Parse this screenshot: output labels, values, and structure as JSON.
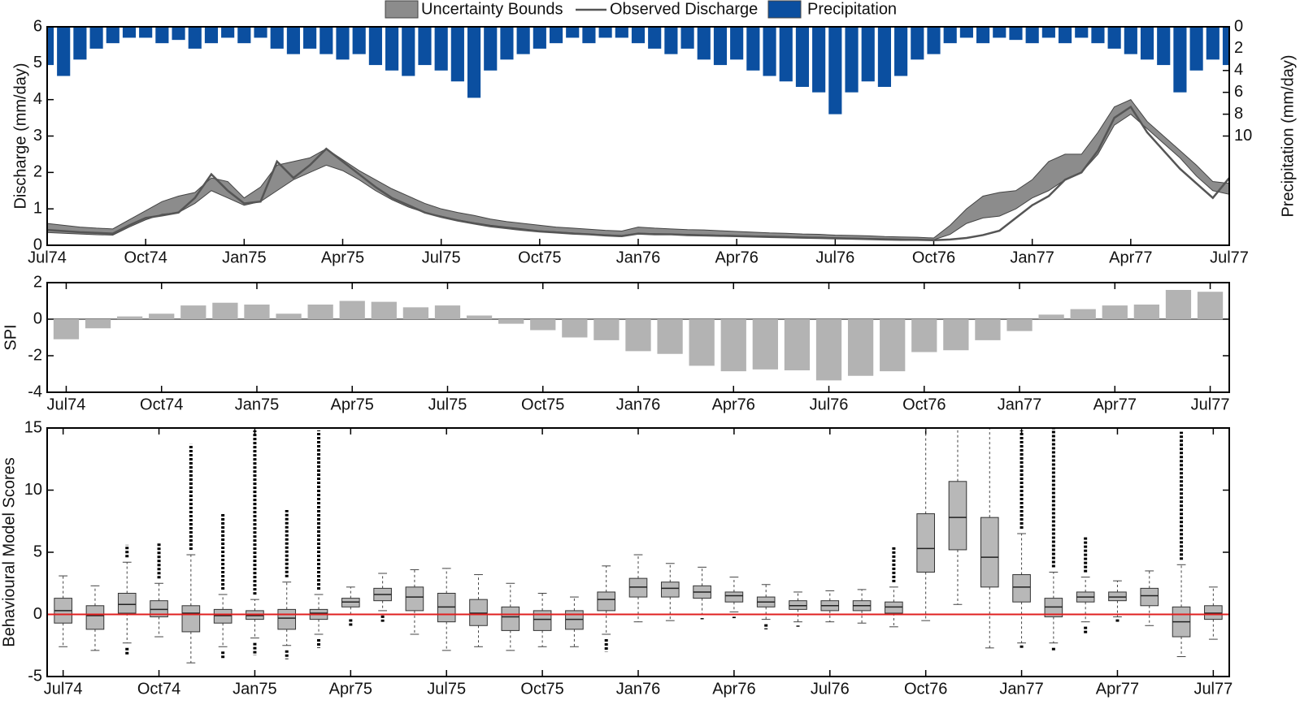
{
  "chart_data": [
    {
      "type": "line",
      "ylabel": "Discharge (mm/day)",
      "y2label": "Precipitation (mm/day)",
      "x": [
        0,
        0.5,
        1,
        1.5,
        2,
        2.5,
        3,
        3.5,
        4,
        4.5,
        5,
        5.5,
        6,
        6.5,
        7,
        7.5,
        8,
        8.5,
        9,
        9.5,
        10,
        10.5,
        11,
        11.5,
        12,
        12.5,
        13,
        13.5,
        14,
        14.5,
        15,
        15.5,
        16,
        16.5,
        17,
        17.5,
        18,
        18.5,
        19,
        19.5,
        20,
        20.5,
        21,
        21.5,
        22,
        22.5,
        23,
        23.5,
        24,
        24.5,
        25,
        25.5,
        26,
        26.5,
        27,
        27.5,
        28,
        28.5,
        29,
        29.5,
        30,
        30.5,
        31,
        31.5,
        32,
        32.5,
        33,
        33.5,
        34,
        34.5,
        35,
        35.5,
        36
      ],
      "xlim": [
        0,
        36
      ],
      "xticks": [
        {
          "value": 0,
          "label": "Jul74"
        },
        {
          "value": 3,
          "label": "Oct74"
        },
        {
          "value": 6,
          "label": "Jan75"
        },
        {
          "value": 9,
          "label": "Apr75"
        },
        {
          "value": 12,
          "label": "Jul75"
        },
        {
          "value": 15,
          "label": "Oct75"
        },
        {
          "value": 18,
          "label": "Jan76"
        },
        {
          "value": 21,
          "label": "Apr76"
        },
        {
          "value": 24,
          "label": "Jul76"
        },
        {
          "value": 27,
          "label": "Oct76"
        },
        {
          "value": 30,
          "label": "Jan77"
        },
        {
          "value": 33,
          "label": "Apr77"
        },
        {
          "value": 36,
          "label": "Jul77"
        }
      ],
      "ylim": [
        0,
        6
      ],
      "yticks": [
        0,
        1,
        2,
        3,
        4,
        5,
        6
      ],
      "y2lim": [
        20,
        0
      ],
      "y2ticks": [
        0,
        2,
        4,
        6,
        8,
        10
      ],
      "series": [
        {
          "name": "Uncertainty Bounds",
          "type": "band",
          "color": "#8c8c8c",
          "lower": [
            0.35,
            0.33,
            0.31,
            0.29,
            0.28,
            0.5,
            0.7,
            0.85,
            0.9,
            1.15,
            1.5,
            1.3,
            1.1,
            1.2,
            1.5,
            1.8,
            2.0,
            2.2,
            2.05,
            1.8,
            1.5,
            1.25,
            1.05,
            0.9,
            0.8,
            0.7,
            0.62,
            0.55,
            0.5,
            0.45,
            0.4,
            0.37,
            0.34,
            0.31,
            0.29,
            0.27,
            0.33,
            0.32,
            0.31,
            0.3,
            0.29,
            0.28,
            0.27,
            0.26,
            0.25,
            0.24,
            0.23,
            0.22,
            0.21,
            0.2,
            0.19,
            0.18,
            0.17,
            0.16,
            0.15,
            0.3,
            0.6,
            0.75,
            0.8,
            1.0,
            1.3,
            1.5,
            1.8,
            2.0,
            2.5,
            3.3,
            3.6,
            3.2,
            2.8,
            2.4,
            1.9,
            1.5,
            1.4
          ],
          "upper": [
            0.6,
            0.55,
            0.5,
            0.47,
            0.45,
            0.7,
            0.95,
            1.2,
            1.35,
            1.45,
            1.85,
            1.75,
            1.3,
            1.6,
            2.2,
            2.3,
            2.4,
            2.65,
            2.35,
            2.05,
            1.8,
            1.55,
            1.35,
            1.15,
            1.0,
            0.9,
            0.82,
            0.72,
            0.65,
            0.6,
            0.55,
            0.5,
            0.47,
            0.44,
            0.41,
            0.39,
            0.5,
            0.47,
            0.45,
            0.43,
            0.42,
            0.4,
            0.38,
            0.36,
            0.34,
            0.33,
            0.31,
            0.3,
            0.28,
            0.27,
            0.26,
            0.24,
            0.23,
            0.22,
            0.2,
            0.55,
            1.0,
            1.35,
            1.45,
            1.5,
            1.8,
            2.3,
            2.5,
            2.5,
            3.1,
            3.8,
            4.0,
            3.4,
            3.0,
            2.6,
            2.2,
            1.75,
            1.7
          ]
        },
        {
          "name": "Observed Discharge",
          "type": "line",
          "color": "#555555",
          "values": [
            0.42,
            0.39,
            0.36,
            0.34,
            0.32,
            0.55,
            0.75,
            0.82,
            0.9,
            1.3,
            1.95,
            1.5,
            1.15,
            1.2,
            2.3,
            1.85,
            2.2,
            2.65,
            2.3,
            1.95,
            1.6,
            1.3,
            1.1,
            0.9,
            0.78,
            0.68,
            0.6,
            0.52,
            0.47,
            0.42,
            0.38,
            0.35,
            0.32,
            0.3,
            0.27,
            0.25,
            0.32,
            0.3,
            0.3,
            0.28,
            0.27,
            0.26,
            0.25,
            0.24,
            0.23,
            0.22,
            0.21,
            0.2,
            0.19,
            0.18,
            0.17,
            0.16,
            0.15,
            0.15,
            0.14,
            0.16,
            0.2,
            0.28,
            0.4,
            0.75,
            1.1,
            1.35,
            1.8,
            2.0,
            2.6,
            3.5,
            3.8,
            3.1,
            2.6,
            2.1,
            1.7,
            1.3,
            1.85
          ]
        },
        {
          "name": "Precipitation",
          "type": "bar",
          "axis": "y2",
          "color": "#0b4fa0",
          "values": [
            3.5,
            4.5,
            3,
            2,
            1.5,
            1,
            1,
            1.5,
            1.2,
            2,
            1.5,
            1,
            1.5,
            1,
            2,
            2.5,
            2,
            2.5,
            3,
            2.5,
            3.5,
            4,
            4.5,
            3.5,
            4,
            5,
            6.5,
            4,
            3,
            2.5,
            2,
            1.5,
            1,
            1.5,
            1,
            1,
            1.5,
            2,
            2.5,
            2,
            3,
            3.5,
            3,
            4,
            4.5,
            5,
            5.5,
            6,
            8,
            6,
            5,
            5.5,
            4.5,
            3,
            2.5,
            1.5,
            1,
            1.5,
            1,
            1.2,
            1.5,
            1,
            1.5,
            1,
            1.5,
            2,
            2.5,
            3,
            3.5,
            6,
            4,
            3,
            3.5
          ]
        }
      ]
    },
    {
      "type": "bar",
      "ylabel": "SPI",
      "color": "#b3b3b3",
      "x": [
        0,
        1,
        2,
        3,
        4,
        5,
        6,
        7,
        8,
        9,
        10,
        11,
        12,
        13,
        14,
        15,
        16,
        17,
        18,
        19,
        20,
        21,
        22,
        23,
        24,
        25,
        26,
        27,
        28,
        29,
        30,
        31,
        32,
        33,
        34,
        35,
        36
      ],
      "values": [
        -1.1,
        -0.5,
        0.15,
        0.3,
        0.75,
        0.9,
        0.8,
        0.3,
        0.8,
        1.0,
        0.95,
        0.65,
        0.75,
        0.2,
        -0.25,
        -0.6,
        -1.0,
        -1.15,
        -1.75,
        -1.9,
        -2.55,
        -2.85,
        -2.75,
        -2.8,
        -3.35,
        -3.1,
        -2.85,
        -1.8,
        -1.7,
        -1.15,
        -0.65,
        0.25,
        0.55,
        0.75,
        0.8,
        1.6,
        1.5
      ],
      "xlim": [
        -0.6,
        36.6
      ],
      "xticks": [
        {
          "value": 0,
          "label": "Jul74"
        },
        {
          "value": 3,
          "label": "Oct74"
        },
        {
          "value": 6,
          "label": "Jan75"
        },
        {
          "value": 9,
          "label": "Apr75"
        },
        {
          "value": 12,
          "label": "Jul75"
        },
        {
          "value": 15,
          "label": "Oct75"
        },
        {
          "value": 18,
          "label": "Jan76"
        },
        {
          "value": 21,
          "label": "Apr76"
        },
        {
          "value": 24,
          "label": "Jul76"
        },
        {
          "value": 27,
          "label": "Oct76"
        },
        {
          "value": 30,
          "label": "Jan77"
        },
        {
          "value": 33,
          "label": "Apr77"
        },
        {
          "value": 36,
          "label": "Jul77"
        }
      ],
      "ylim": [
        -4,
        2
      ],
      "yticks": [
        -4,
        -2,
        0,
        2
      ]
    },
    {
      "type": "box",
      "ylabel": "Behavioural Model Scores",
      "color": "#b8b8b8",
      "hline": 0,
      "hline_color": "#e02020",
      "x": [
        0,
        1,
        2,
        3,
        4,
        5,
        6,
        7,
        8,
        9,
        10,
        11,
        12,
        13,
        14,
        15,
        16,
        17,
        18,
        19,
        20,
        21,
        22,
        23,
        24,
        25,
        26,
        27,
        28,
        29,
        30,
        31,
        32,
        33,
        34,
        35,
        36
      ],
      "whisker_low": [
        -2.6,
        -2.9,
        -2.3,
        -1.8,
        -3.9,
        -2.6,
        -1.9,
        -2.5,
        -1.6,
        0.0,
        0.3,
        -1.6,
        -2.9,
        -2.6,
        -2.9,
        -2.6,
        -2.6,
        -1.6,
        -0.6,
        -0.5,
        0.0,
        0.2,
        -0.4,
        -0.6,
        -0.6,
        -0.7,
        -1.0,
        -0.5,
        0.8,
        -2.7,
        -2.3,
        -2.3,
        -0.6,
        -0.2,
        -0.9,
        -3.4,
        -2.0
      ],
      "q1": [
        -0.7,
        -1.2,
        0.1,
        -0.2,
        -1.4,
        -0.7,
        -0.4,
        -1.2,
        -0.4,
        0.6,
        1.1,
        0.3,
        -0.6,
        -0.9,
        -1.3,
        -1.3,
        -1.2,
        0.3,
        1.4,
        1.4,
        1.3,
        1.0,
        0.6,
        0.4,
        0.3,
        0.3,
        0.1,
        3.4,
        5.2,
        2.2,
        1.0,
        -0.2,
        1.0,
        1.1,
        0.7,
        -1.8,
        -0.4
      ],
      "median": [
        0.3,
        -0.1,
        0.8,
        0.4,
        0.1,
        -0.1,
        -0.1,
        -0.3,
        0.1,
        1.0,
        1.6,
        1.4,
        0.6,
        0.1,
        -0.2,
        -0.4,
        -0.4,
        1.2,
        2.2,
        2.1,
        1.8,
        1.5,
        1.0,
        0.7,
        0.7,
        0.7,
        0.6,
        5.3,
        7.8,
        4.6,
        2.2,
        0.6,
        1.4,
        1.4,
        1.5,
        -0.6,
        0.1
      ],
      "q3": [
        1.3,
        0.7,
        1.7,
        1.1,
        0.7,
        0.4,
        0.3,
        0.4,
        0.4,
        1.3,
        2.1,
        2.2,
        1.7,
        1.2,
        0.6,
        0.3,
        0.3,
        1.8,
        2.9,
        2.6,
        2.3,
        1.8,
        1.4,
        1.1,
        1.1,
        1.1,
        1.0,
        8.1,
        10.7,
        7.8,
        3.2,
        1.3,
        1.8,
        1.8,
        2.1,
        0.6,
        0.7
      ],
      "whisker_high": [
        3.1,
        2.3,
        4.2,
        2.5,
        4.8,
        1.6,
        1.2,
        2.6,
        1.6,
        2.2,
        3.3,
        3.6,
        3.7,
        3.2,
        2.5,
        1.7,
        1.4,
        3.9,
        4.8,
        4.1,
        3.8,
        3.0,
        2.4,
        1.8,
        1.9,
        2.0,
        2.2,
        15,
        15,
        15,
        6.5,
        3.4,
        3.0,
        2.7,
        3.5,
        4.0,
        2.2
      ],
      "outlier_low": [
        null,
        null,
        -3.3,
        null,
        null,
        -3.6,
        -3.3,
        -3.6,
        -2.7,
        -1.0,
        -0.6,
        null,
        null,
        null,
        null,
        null,
        null,
        -3.0,
        null,
        null,
        -0.3,
        -0.3,
        -1.2,
        -0.9,
        null,
        null,
        null,
        null,
        null,
        null,
        -2.5,
        -2.9,
        -1.6,
        -0.4,
        null,
        null,
        null
      ],
      "outlier_high": [
        null,
        null,
        5.6,
        5.7,
        13.7,
        8.2,
        14.8,
        8.4,
        14.8,
        null,
        null,
        null,
        null,
        null,
        null,
        null,
        null,
        null,
        null,
        null,
        null,
        null,
        null,
        null,
        null,
        null,
        5.4,
        null,
        null,
        null,
        14.8,
        15,
        6.2,
        null,
        null,
        14.7,
        null
      ],
      "xlim": [
        -0.5,
        36.5
      ],
      "xticks": [
        {
          "value": 0,
          "label": "Jul74"
        },
        {
          "value": 3,
          "label": "Oct74"
        },
        {
          "value": 6,
          "label": "Jan75"
        },
        {
          "value": 9,
          "label": "Apr75"
        },
        {
          "value": 12,
          "label": "Jul75"
        },
        {
          "value": 15,
          "label": "Oct75"
        },
        {
          "value": 18,
          "label": "Jan76"
        },
        {
          "value": 21,
          "label": "Apr76"
        },
        {
          "value": 24,
          "label": "Jul76"
        },
        {
          "value": 27,
          "label": "Oct76"
        },
        {
          "value": 30,
          "label": "Jan77"
        },
        {
          "value": 33,
          "label": "Apr77"
        },
        {
          "value": 36,
          "label": "Jul77"
        }
      ],
      "ylim": [
        -5,
        15
      ],
      "yticks": [
        -5,
        0,
        5,
        10,
        15
      ]
    }
  ]
}
